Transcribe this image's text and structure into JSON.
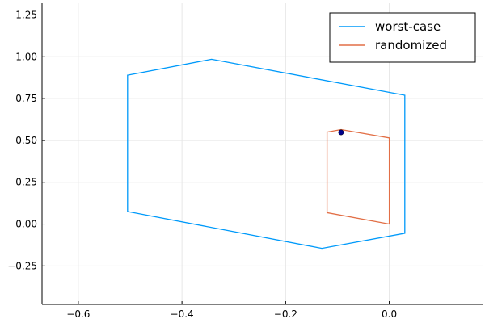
{
  "chart_data": {
    "type": "line",
    "title": "",
    "xlabel": "",
    "ylabel": "",
    "xlim": [
      -0.67,
      0.18
    ],
    "ylim": [
      -0.48,
      1.32
    ],
    "xticks": [
      -0.6,
      -0.4,
      -0.2,
      0.0
    ],
    "xtick_labels": [
      "−0.6",
      "−0.4",
      "−0.2",
      "0.0"
    ],
    "yticks": [
      -0.25,
      0.0,
      0.25,
      0.5,
      0.75,
      1.0,
      1.25
    ],
    "ytick_labels": [
      "−0.25",
      "0.00",
      "0.25",
      "0.50",
      "0.75",
      "1.00",
      "1.25"
    ],
    "grid": true,
    "legend_position": "top-right",
    "series": [
      {
        "name": "worst-case",
        "color": "#009AFA",
        "closed": true,
        "points": [
          [
            -0.505,
            0.89
          ],
          [
            -0.343,
            0.985
          ],
          [
            0.03,
            0.77
          ],
          [
            0.03,
            -0.055
          ],
          [
            -0.13,
            -0.145
          ],
          [
            -0.505,
            0.075
          ]
        ]
      },
      {
        "name": "randomized",
        "color": "#E26F46",
        "closed": true,
        "points": [
          [
            -0.12,
            0.55
          ],
          [
            -0.093,
            0.565
          ],
          [
            0.0,
            0.515
          ],
          [
            0.0,
            0.0
          ],
          [
            -0.12,
            0.068
          ]
        ]
      }
    ],
    "markers": [
      {
        "x": -0.093,
        "y": 0.548,
        "color": "#00008B"
      }
    ]
  }
}
